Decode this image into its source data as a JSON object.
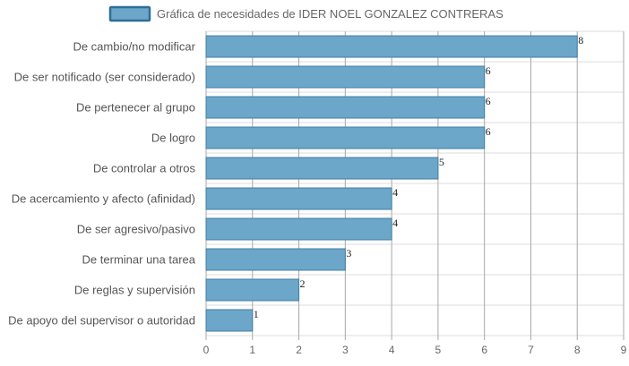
{
  "chart_data": {
    "type": "bar",
    "orientation": "horizontal",
    "title": "",
    "xlabel": "",
    "ylabel": "",
    "legend": {
      "entries": [
        "Gráfica de necesidades de IDER NOEL GONZALEZ CONTRERAS"
      ],
      "placement": "top-center"
    },
    "categories": [
      "De cambio/no modificar",
      "De ser notificado (ser considerado)",
      "De pertenecer al grupo",
      "De logro",
      "De controlar a otros",
      "De acercamiento y afecto (afinidad)",
      "De ser agresivo/pasivo",
      "De terminar una tarea",
      "De reglas y supervisión",
      "De apoyo del supervisor o autoridad"
    ],
    "series": [
      {
        "name": "Gráfica de necesidades de IDER NOEL GONZALEZ CONTRERAS",
        "values": [
          8,
          6,
          6,
          6,
          5,
          4,
          4,
          3,
          2,
          1
        ]
      }
    ],
    "xlim": [
      0,
      9
    ],
    "x_ticks": [
      "0",
      "1",
      "2",
      "3",
      "4",
      "5",
      "6",
      "7",
      "8",
      "9"
    ],
    "grid": true,
    "data_labels": true,
    "colors": {
      "bar_fill": "#6ca6c8",
      "bar_stroke": "#3f7fa6",
      "legend_fill": "#6ca6c8",
      "legend_stroke": "#2e6f96",
      "grid_vertical": "#a8a8a8",
      "grid_horizontal": "#dddddd"
    }
  }
}
